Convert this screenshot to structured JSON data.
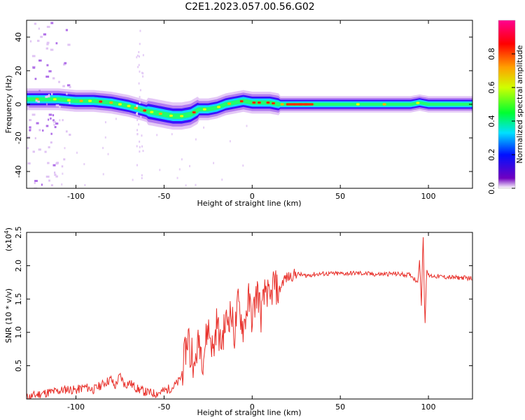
{
  "title": "C2E1.2023.057.00.56.G02",
  "chart_data": [
    {
      "type": "heatmap",
      "xlabel": "Height of straight line (km)",
      "ylabel": "Frequency (Hz)",
      "xlim": [
        -128,
        125
      ],
      "ylim": [
        -50,
        50
      ],
      "xticks": [
        -100,
        -50,
        0,
        50,
        100
      ],
      "yticks": [
        -40,
        -20,
        0,
        20,
        40
      ],
      "colorbar": {
        "label": "Normalized spectral amplitude",
        "range": [
          0.0,
          1.0
        ],
        "ticks": [
          0.0,
          0.2,
          0.4,
          0.6,
          0.8
        ],
        "tick_labels": [
          "0.0",
          "0.2",
          "0.4",
          "0.6",
          "0.8"
        ],
        "colormap": [
          "#6a0dad",
          "#0000ff",
          "#00ffff",
          "#00ff00",
          "#ffff00",
          "#ff8000",
          "#ff0000",
          "#ff0080"
        ]
      },
      "ridge": {
        "x": [
          -124,
          -110,
          -100,
          -90,
          -80,
          -70,
          -60,
          -50,
          -45,
          -40,
          -35,
          -30,
          -25,
          -20,
          -15,
          -10,
          -5,
          0,
          5,
          10,
          15,
          20,
          30,
          40,
          50,
          60,
          70,
          80,
          90,
          95,
          100,
          110,
          120,
          125
        ],
        "freq": [
          3,
          3,
          2,
          2,
          1,
          -1,
          -4,
          -6,
          -7,
          -7,
          -6,
          -3,
          -3,
          -2,
          0,
          1,
          2,
          1,
          1,
          1,
          0,
          0,
          0,
          0,
          0,
          0,
          0,
          0,
          0,
          1,
          0,
          0,
          0,
          0
        ]
      }
    },
    {
      "type": "line",
      "xlabel": "Height of straight line (km)",
      "ylabel": "SNR (10 * v/v)",
      "y_multiplier": "(x10",
      "y_multiplier_exp": "4",
      "y_multiplier_close": ")",
      "xlim": [
        -128,
        125
      ],
      "ylim": [
        0,
        25000
      ],
      "xticks": [
        -100,
        -50,
        0,
        50,
        100
      ],
      "yticks": [
        5000,
        10000,
        15000,
        20000,
        25000
      ],
      "ytick_labels": [
        "0.5",
        "1.0",
        "1.5",
        "2.0",
        "2.5"
      ],
      "color": "#e8302a",
      "series": [
        {
          "x": [
            -128,
            -120,
            -110,
            -105,
            -100,
            -95,
            -90,
            -85,
            -80,
            -78,
            -75,
            -72,
            -70,
            -65,
            -60,
            -55,
            -50,
            -45,
            -42,
            -40,
            -38,
            -36,
            -35,
            -34,
            -33,
            -32,
            -30,
            -28,
            -25,
            -22,
            -20,
            -18,
            -15,
            -12,
            -10,
            -8,
            -5,
            -2,
            0,
            3,
            5,
            8,
            10,
            12,
            15,
            18,
            20,
            25,
            30,
            35,
            40,
            50,
            60,
            70,
            80,
            90,
            94,
            95,
            96,
            97,
            98,
            99,
            100,
            105,
            110,
            115,
            120,
            125
          ],
          "y": [
            200,
            800,
            1200,
            1500,
            1300,
            1800,
            1400,
            2200,
            3000,
            1800,
            3500,
            2000,
            2500,
            1500,
            1000,
            800,
            1200,
            1800,
            2500,
            3500,
            7000,
            10000,
            5000,
            8500,
            3000,
            6500,
            9000,
            6000,
            11000,
            7000,
            12000,
            8000,
            11500,
            13000,
            9500,
            14500,
            10500,
            15000,
            12000,
            16500,
            12500,
            17000,
            14000,
            17500,
            16000,
            18000,
            18200,
            18800,
            18500,
            18700,
            18800,
            18800,
            18900,
            18700,
            18800,
            18600,
            17500,
            21000,
            14000,
            25000,
            10500,
            19500,
            18500,
            18400,
            18300,
            18200,
            18200,
            18100
          ]
        }
      ]
    }
  ]
}
